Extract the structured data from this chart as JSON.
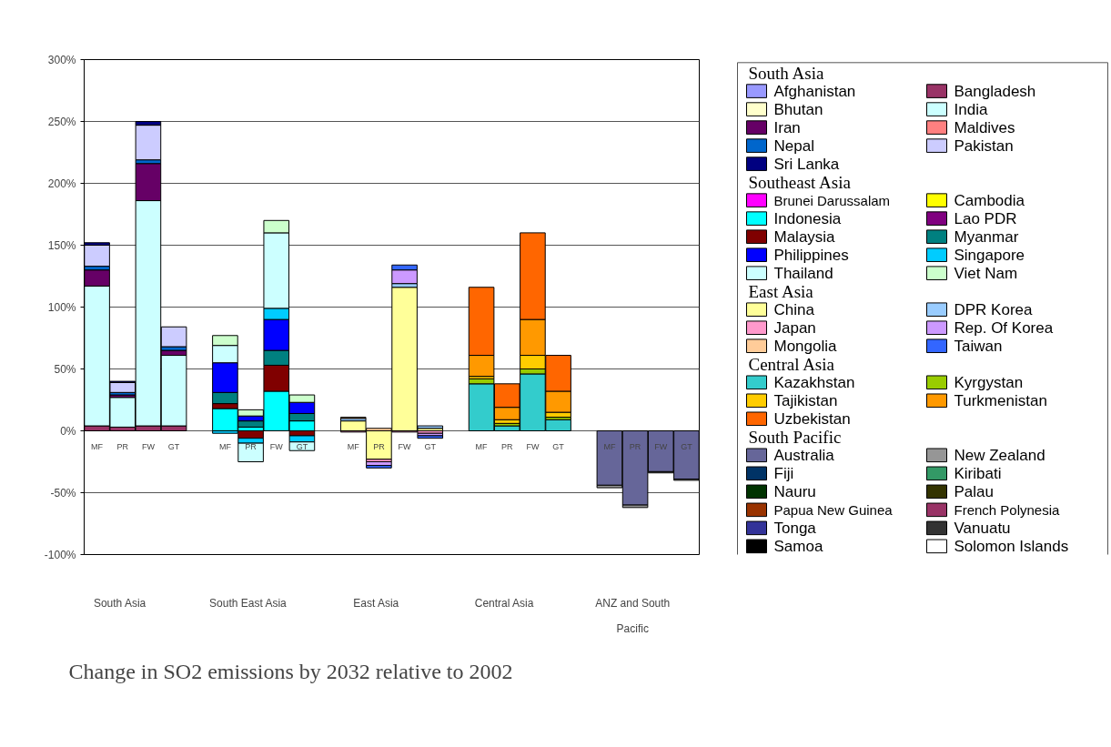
{
  "chart_data": {
    "type": "bar",
    "stacked": true,
    "title": "Change in SO2 emissions by 2032 relative to 2002",
    "categories": [
      "MF",
      "PR",
      "FW",
      "GT",
      null,
      "MF",
      "PR",
      "FW",
      "GT",
      null,
      "MF",
      "PR",
      "FW",
      "GT",
      null,
      "MF",
      "PR",
      "FW",
      "GT",
      null,
      "MF",
      "PR",
      "FW",
      "GT"
    ],
    "ylim": [
      -100,
      300
    ],
    "yticks": [
      {
        "value": -100,
        "label": "-100%"
      },
      {
        "value": -50,
        "label": "-50%"
      },
      {
        "value": 0,
        "label": "0%"
      },
      {
        "value": 50,
        "label": "50%"
      },
      {
        "value": 100,
        "label": "100%"
      },
      {
        "value": 150,
        "label": "150%"
      },
      {
        "value": 200,
        "label": "200%"
      },
      {
        "value": 250,
        "label": "250%"
      },
      {
        "value": 300,
        "label": "300%"
      }
    ],
    "grid": "y",
    "legend": "right",
    "annotations": [
      "South Asia",
      "South East Asia",
      "East Asia",
      "Central Asia",
      "ANZ and South Pacific",
      "South Asia",
      "Southeast Asia",
      "East Asia",
      "Central Asia",
      "South Pacific"
    ],
    "series": [
      {
        "name": "Afghanistan",
        "color": "#9999ff",
        "values": [
          0,
          0,
          0,
          0,
          null,
          null,
          null,
          null,
          null,
          null,
          null,
          null,
          null,
          null,
          null,
          null,
          null,
          null,
          null,
          null,
          null,
          null,
          null,
          null
        ]
      },
      {
        "name": "Bangladesh",
        "color": "#993366",
        "values": [
          4,
          3,
          4,
          4,
          null,
          null,
          null,
          null,
          null,
          null,
          null,
          null,
          null,
          null,
          null,
          null,
          null,
          null,
          null,
          null,
          null,
          null,
          null,
          null
        ]
      },
      {
        "name": "Bhutan",
        "color": "#ffffcc",
        "values": [
          0,
          0,
          0,
          0,
          null,
          null,
          null,
          null,
          null,
          null,
          null,
          null,
          null,
          null,
          null,
          null,
          null,
          null,
          null,
          null,
          null,
          null,
          null,
          null
        ]
      },
      {
        "name": "India",
        "color": "#ccffff",
        "values": [
          113,
          24,
          182,
          57,
          null,
          null,
          null,
          null,
          null,
          null,
          null,
          null,
          null,
          null,
          null,
          null,
          null,
          null,
          null,
          null,
          null,
          null,
          null,
          null
        ]
      },
      {
        "name": "Iran",
        "color": "#660066",
        "values": [
          13,
          2,
          30,
          4,
          null,
          null,
          null,
          null,
          null,
          null,
          null,
          null,
          null,
          null,
          null,
          null,
          null,
          null,
          null,
          null,
          null,
          null,
          null,
          null
        ]
      },
      {
        "name": "Maldives",
        "color": "#ff8080",
        "values": [
          0,
          0,
          0,
          0,
          null,
          null,
          null,
          null,
          null,
          null,
          null,
          null,
          null,
          null,
          null,
          null,
          null,
          null,
          null,
          null,
          null,
          null,
          null,
          null
        ]
      },
      {
        "name": "Nepal",
        "color": "#0066cc",
        "values": [
          3,
          2,
          3,
          3,
          null,
          null,
          null,
          null,
          null,
          null,
          null,
          null,
          null,
          null,
          null,
          null,
          null,
          null,
          null,
          null,
          null,
          null,
          null,
          null
        ]
      },
      {
        "name": "Pakistan",
        "color": "#ccccff",
        "values": [
          17,
          8,
          28,
          16,
          null,
          null,
          null,
          null,
          null,
          null,
          null,
          null,
          null,
          null,
          null,
          null,
          null,
          null,
          null,
          null,
          null,
          null,
          null,
          null
        ]
      },
      {
        "name": "Sri Lanka",
        "color": "#000080",
        "values": [
          2,
          1,
          3,
          0,
          null,
          null,
          null,
          null,
          null,
          null,
          null,
          null,
          null,
          null,
          null,
          null,
          null,
          null,
          null,
          null,
          null,
          null,
          null,
          null
        ]
      },
      {
        "name": "Brunei Darussalam",
        "color": "#ff00ff",
        "values": [
          null,
          null,
          null,
          null,
          null,
          0,
          0,
          0,
          0,
          null,
          null,
          null,
          null,
          null,
          null,
          null,
          null,
          null,
          null,
          null,
          null,
          null,
          null,
          null
        ]
      },
      {
        "name": "Cambodia",
        "color": "#ffff00",
        "values": [
          null,
          null,
          null,
          null,
          null,
          0,
          0,
          0,
          0,
          null,
          null,
          null,
          null,
          null,
          null,
          null,
          null,
          null,
          null,
          null,
          null,
          null,
          null,
          null
        ]
      },
      {
        "name": "Indonesia",
        "color": "#00ffff",
        "values": [
          null,
          null,
          null,
          null,
          null,
          18,
          3,
          32,
          8,
          null,
          null,
          null,
          null,
          null,
          null,
          null,
          null,
          null,
          null,
          null,
          null,
          null,
          null,
          null
        ]
      },
      {
        "name": "Lao PDR",
        "color": "#800080",
        "values": [
          null,
          null,
          null,
          null,
          null,
          0,
          0,
          0,
          0,
          null,
          null,
          null,
          null,
          null,
          null,
          null,
          null,
          null,
          null,
          null,
          null,
          null,
          null,
          null
        ]
      },
      {
        "name": "Malaysia",
        "color": "#800000",
        "values": [
          null,
          null,
          null,
          null,
          null,
          4,
          -6,
          21,
          -4,
          null,
          null,
          null,
          null,
          null,
          null,
          null,
          null,
          null,
          null,
          null,
          null,
          null,
          null,
          null
        ]
      },
      {
        "name": "Myanmar",
        "color": "#008080",
        "values": [
          null,
          null,
          null,
          null,
          null,
          9,
          5,
          12,
          6,
          null,
          null,
          null,
          null,
          null,
          null,
          null,
          null,
          null,
          null,
          null,
          null,
          null,
          null,
          null
        ]
      },
      {
        "name": "Philippines",
        "color": "#0000ff",
        "values": [
          null,
          null,
          null,
          null,
          null,
          24,
          4,
          25,
          9,
          null,
          null,
          null,
          null,
          null,
          null,
          null,
          null,
          null,
          null,
          null,
          null,
          null,
          null,
          null
        ]
      },
      {
        "name": "Singapore",
        "color": "#00ccff",
        "values": [
          null,
          null,
          null,
          null,
          null,
          -2,
          -4,
          9,
          -5,
          null,
          null,
          null,
          null,
          null,
          null,
          null,
          null,
          null,
          null,
          null,
          null,
          null,
          null,
          null
        ]
      },
      {
        "name": "Thailand",
        "color": "#ccffff",
        "values": [
          null,
          null,
          null,
          null,
          null,
          14,
          -15,
          61,
          -7,
          null,
          null,
          null,
          null,
          null,
          null,
          null,
          null,
          null,
          null,
          null,
          null,
          null,
          null,
          null
        ]
      },
      {
        "name": "Viet Nam",
        "color": "#ccffcc",
        "values": [
          null,
          null,
          null,
          null,
          null,
          8,
          5,
          10,
          6,
          null,
          null,
          null,
          null,
          null,
          null,
          null,
          null,
          null,
          null,
          null,
          null,
          null,
          null,
          null
        ]
      },
      {
        "name": "China",
        "color": "#ffff99",
        "values": [
          null,
          null,
          null,
          null,
          null,
          null,
          null,
          null,
          null,
          null,
          8,
          -23,
          116,
          2,
          null,
          null,
          null,
          null,
          null,
          null,
          null,
          null,
          null,
          null
        ]
      },
      {
        "name": "DPR Korea",
        "color": "#99ccff",
        "values": [
          null,
          null,
          null,
          null,
          null,
          null,
          null,
          null,
          null,
          null,
          2,
          0,
          3,
          2,
          null,
          null,
          null,
          null,
          null,
          null,
          null,
          null,
          null,
          null
        ]
      },
      {
        "name": "Japan",
        "color": "#ff99cc",
        "values": [
          null,
          null,
          null,
          null,
          null,
          null,
          null,
          null,
          null,
          null,
          -1,
          -2,
          -1,
          -2,
          null,
          null,
          null,
          null,
          null,
          null,
          null,
          null,
          null,
          null
        ]
      },
      {
        "name": "Rep. Of Korea",
        "color": "#cc99ff",
        "values": [
          null,
          null,
          null,
          null,
          null,
          null,
          null,
          null,
          null,
          null,
          0,
          -3,
          11,
          -2,
          null,
          null,
          null,
          null,
          null,
          null,
          null,
          null,
          null,
          null
        ]
      },
      {
        "name": "Mongolia",
        "color": "#ffcc99",
        "values": [
          null,
          null,
          null,
          null,
          null,
          null,
          null,
          null,
          null,
          null,
          1,
          2,
          0,
          0,
          null,
          null,
          null,
          null,
          null,
          null,
          null,
          null,
          null,
          null
        ]
      },
      {
        "name": "Taiwan",
        "color": "#3366ff",
        "values": [
          null,
          null,
          null,
          null,
          null,
          null,
          null,
          null,
          null,
          null,
          0,
          -2,
          4,
          -2,
          null,
          null,
          null,
          null,
          null,
          null,
          null,
          null,
          null,
          null
        ]
      },
      {
        "name": "Kazakhstan",
        "color": "#33cccc",
        "values": [
          null,
          null,
          null,
          null,
          null,
          null,
          null,
          null,
          null,
          null,
          null,
          null,
          null,
          null,
          null,
          38,
          4,
          46,
          9,
          null,
          null,
          null,
          null,
          null
        ]
      },
      {
        "name": "Kyrgystan",
        "color": "#99cc00",
        "values": [
          null,
          null,
          null,
          null,
          null,
          null,
          null,
          null,
          null,
          null,
          null,
          null,
          null,
          null,
          null,
          4,
          2,
          4,
          2,
          null,
          null,
          null,
          null,
          null
        ]
      },
      {
        "name": "Tajikistan",
        "color": "#ffcc00",
        "values": [
          null,
          null,
          null,
          null,
          null,
          null,
          null,
          null,
          null,
          null,
          null,
          null,
          null,
          null,
          null,
          2,
          3,
          11,
          4,
          null,
          null,
          null,
          null,
          null
        ]
      },
      {
        "name": "Turkmenistan",
        "color": "#ff9900",
        "values": [
          null,
          null,
          null,
          null,
          null,
          null,
          null,
          null,
          null,
          null,
          null,
          null,
          null,
          null,
          null,
          17,
          10,
          29,
          17,
          null,
          null,
          null,
          null,
          null
        ]
      },
      {
        "name": "Uzbekistan",
        "color": "#ff6600",
        "values": [
          null,
          null,
          null,
          null,
          null,
          null,
          null,
          null,
          null,
          null,
          null,
          null,
          null,
          null,
          null,
          55,
          19,
          70,
          29,
          null,
          null,
          null,
          null,
          null
        ]
      },
      {
        "name": "Australia",
        "color": "#666699",
        "values": [
          null,
          null,
          null,
          null,
          null,
          null,
          null,
          null,
          null,
          null,
          null,
          null,
          null,
          null,
          null,
          null,
          null,
          null,
          null,
          null,
          -44,
          -60,
          -33,
          -39
        ]
      },
      {
        "name": "New Zealand",
        "color": "#969696",
        "values": [
          null,
          null,
          null,
          null,
          null,
          null,
          null,
          null,
          null,
          null,
          null,
          null,
          null,
          null,
          null,
          null,
          null,
          null,
          null,
          null,
          -2,
          -2,
          -1,
          -1
        ]
      },
      {
        "name": "Fiji",
        "color": "#003366",
        "values": [
          null,
          null,
          null,
          null,
          null,
          null,
          null,
          null,
          null,
          null,
          null,
          null,
          null,
          null,
          null,
          null,
          null,
          null,
          null,
          null,
          0,
          0,
          0,
          0
        ]
      },
      {
        "name": "Kiribati",
        "color": "#339966",
        "values": [
          null,
          null,
          null,
          null,
          null,
          null,
          null,
          null,
          null,
          null,
          null,
          null,
          null,
          null,
          null,
          null,
          null,
          null,
          null,
          null,
          0,
          0,
          0,
          0
        ]
      },
      {
        "name": "Nauru",
        "color": "#003300",
        "values": [
          null,
          null,
          null,
          null,
          null,
          null,
          null,
          null,
          null,
          null,
          null,
          null,
          null,
          null,
          null,
          null,
          null,
          null,
          null,
          null,
          0,
          0,
          0,
          0
        ]
      },
      {
        "name": "Palau",
        "color": "#333300",
        "values": [
          null,
          null,
          null,
          null,
          null,
          null,
          null,
          null,
          null,
          null,
          null,
          null,
          null,
          null,
          null,
          null,
          null,
          null,
          null,
          null,
          0,
          0,
          0,
          0
        ]
      },
      {
        "name": "Papua New Guinea",
        "color": "#993300",
        "values": [
          null,
          null,
          null,
          null,
          null,
          null,
          null,
          null,
          null,
          null,
          null,
          null,
          null,
          null,
          null,
          null,
          null,
          null,
          null,
          null,
          0,
          0,
          0,
          0
        ]
      },
      {
        "name": "French Polynesia",
        "color": "#993366",
        "values": [
          null,
          null,
          null,
          null,
          null,
          null,
          null,
          null,
          null,
          null,
          null,
          null,
          null,
          null,
          null,
          null,
          null,
          null,
          null,
          null,
          0,
          0,
          0,
          0
        ]
      },
      {
        "name": "Tonga",
        "color": "#333399",
        "values": [
          null,
          null,
          null,
          null,
          null,
          null,
          null,
          null,
          null,
          null,
          null,
          null,
          null,
          null,
          null,
          null,
          null,
          null,
          null,
          null,
          0,
          0,
          0,
          0
        ]
      },
      {
        "name": "Vanuatu",
        "color": "#333333",
        "values": [
          null,
          null,
          null,
          null,
          null,
          null,
          null,
          null,
          null,
          null,
          null,
          null,
          null,
          null,
          null,
          null,
          null,
          null,
          null,
          null,
          0,
          0,
          0,
          0
        ]
      },
      {
        "name": "Samoa",
        "color": "#000000",
        "values": [
          null,
          null,
          null,
          null,
          null,
          null,
          null,
          null,
          null,
          null,
          null,
          null,
          null,
          null,
          null,
          null,
          null,
          null,
          null,
          null,
          0,
          0,
          0,
          0
        ]
      },
      {
        "name": "Solomon Islands",
        "color": "#ffffff",
        "values": [
          null,
          null,
          null,
          null,
          null,
          null,
          null,
          null,
          null,
          null,
          null,
          null,
          null,
          null,
          null,
          null,
          null,
          null,
          null,
          null,
          0,
          0,
          0,
          0
        ]
      }
    ]
  }
}
